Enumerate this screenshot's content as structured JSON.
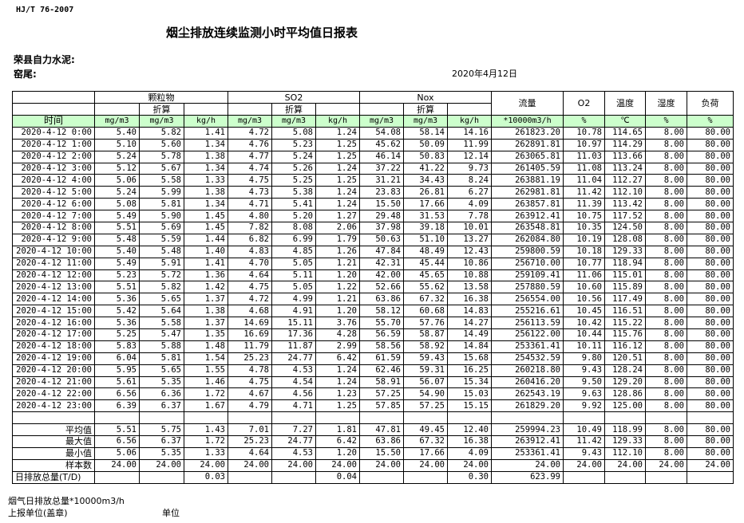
{
  "standard": "HJ/T  76-2007",
  "title": "烟尘排放连续监测小时平均值日报表",
  "company": "荣县自力水泥:",
  "kiln": "窑尾:",
  "date": "2020年4月12日",
  "header": {
    "particulate": "颗粒物",
    "so2": "SO2",
    "nox": "Nox",
    "converted": "折算",
    "flow": "流量",
    "o2": "O2",
    "temperature": "温度",
    "humidity": "湿度",
    "load": "负荷",
    "time": "时间",
    "units": [
      "mg/m3",
      "mg/m3",
      "kg/h",
      "mg/m3",
      "mg/m3",
      "kg/h",
      "mg/m3",
      "mg/m3",
      "kg/h",
      "*10000m3/h",
      "%",
      "℃",
      "%",
      "%"
    ]
  },
  "rows": [
    [
      "2020-4-12 0:00",
      "5.40",
      "5.82",
      "1.41",
      "4.72",
      "5.08",
      "1.24",
      "54.08",
      "58.14",
      "14.16",
      "261823.20",
      "10.78",
      "114.65",
      "8.00",
      "80.00"
    ],
    [
      "2020-4-12 1:00",
      "5.10",
      "5.60",
      "1.34",
      "4.76",
      "5.23",
      "1.25",
      "45.62",
      "50.09",
      "11.99",
      "262891.81",
      "10.97",
      "114.29",
      "8.00",
      "80.00"
    ],
    [
      "2020-4-12 2:00",
      "5.24",
      "5.78",
      "1.38",
      "4.77",
      "5.24",
      "1.25",
      "46.14",
      "50.83",
      "12.14",
      "263065.81",
      "11.03",
      "113.66",
      "8.00",
      "80.00"
    ],
    [
      "2020-4-12 3:00",
      "5.12",
      "5.67",
      "1.34",
      "4.74",
      "5.26",
      "1.24",
      "37.22",
      "41.22",
      "9.73",
      "261405.59",
      "11.08",
      "113.24",
      "8.00",
      "80.00"
    ],
    [
      "2020-4-12 4:00",
      "5.06",
      "5.58",
      "1.33",
      "4.75",
      "5.25",
      "1.25",
      "31.21",
      "34.43",
      "8.24",
      "263881.19",
      "11.04",
      "112.27",
      "8.00",
      "80.00"
    ],
    [
      "2020-4-12 5:00",
      "5.24",
      "5.99",
      "1.38",
      "4.73",
      "5.38",
      "1.24",
      "23.83",
      "26.81",
      "6.27",
      "262981.81",
      "11.42",
      "112.10",
      "8.00",
      "80.00"
    ],
    [
      "2020-4-12 6:00",
      "5.08",
      "5.81",
      "1.34",
      "4.71",
      "5.41",
      "1.24",
      "15.50",
      "17.66",
      "4.09",
      "263857.81",
      "11.39",
      "113.42",
      "8.00",
      "80.00"
    ],
    [
      "2020-4-12 7:00",
      "5.49",
      "5.90",
      "1.45",
      "4.80",
      "5.20",
      "1.27",
      "29.48",
      "31.53",
      "7.78",
      "263912.41",
      "10.75",
      "117.52",
      "8.00",
      "80.00"
    ],
    [
      "2020-4-12 8:00",
      "5.51",
      "5.69",
      "1.45",
      "7.82",
      "8.08",
      "2.06",
      "37.98",
      "39.18",
      "10.01",
      "263548.81",
      "10.35",
      "124.50",
      "8.00",
      "80.00"
    ],
    [
      "2020-4-12 9:00",
      "5.48",
      "5.59",
      "1.44",
      "6.82",
      "6.99",
      "1.79",
      "50.63",
      "51.10",
      "13.27",
      "262084.80",
      "10.19",
      "128.08",
      "8.00",
      "80.00"
    ],
    [
      "2020-4-12 10:00",
      "5.40",
      "5.48",
      "1.40",
      "4.83",
      "4.85",
      "1.26",
      "47.84",
      "48.49",
      "12.43",
      "259800.59",
      "10.18",
      "129.33",
      "8.00",
      "80.00"
    ],
    [
      "2020-4-12 11:00",
      "5.49",
      "5.91",
      "1.41",
      "4.70",
      "5.05",
      "1.21",
      "42.31",
      "45.44",
      "10.86",
      "256710.00",
      "10.77",
      "118.94",
      "8.00",
      "80.00"
    ],
    [
      "2020-4-12 12:00",
      "5.23",
      "5.72",
      "1.36",
      "4.64",
      "5.11",
      "1.20",
      "42.00",
      "45.65",
      "10.88",
      "259109.41",
      "11.06",
      "115.01",
      "8.00",
      "80.00"
    ],
    [
      "2020-4-12 13:00",
      "5.51",
      "5.82",
      "1.42",
      "4.75",
      "5.05",
      "1.22",
      "52.66",
      "55.62",
      "13.58",
      "257880.59",
      "10.60",
      "115.89",
      "8.00",
      "80.00"
    ],
    [
      "2020-4-12 14:00",
      "5.36",
      "5.65",
      "1.37",
      "4.72",
      "4.99",
      "1.21",
      "63.86",
      "67.32",
      "16.38",
      "256554.00",
      "10.56",
      "117.49",
      "8.00",
      "80.00"
    ],
    [
      "2020-4-12 15:00",
      "5.42",
      "5.64",
      "1.38",
      "4.68",
      "4.91",
      "1.20",
      "58.12",
      "60.68",
      "14.83",
      "255216.61",
      "10.45",
      "116.51",
      "8.00",
      "80.00"
    ],
    [
      "2020-4-12 16:00",
      "5.36",
      "5.58",
      "1.37",
      "14.69",
      "15.11",
      "3.76",
      "55.70",
      "57.76",
      "14.27",
      "256113.59",
      "10.42",
      "115.22",
      "8.00",
      "80.00"
    ],
    [
      "2020-4-12 17:00",
      "5.25",
      "5.47",
      "1.35",
      "16.69",
      "17.36",
      "4.28",
      "56.59",
      "58.87",
      "14.49",
      "256122.00",
      "10.44",
      "115.76",
      "8.00",
      "80.00"
    ],
    [
      "2020-4-12 18:00",
      "5.83",
      "5.88",
      "1.48",
      "11.79",
      "11.87",
      "2.99",
      "58.56",
      "58.92",
      "14.84",
      "253361.41",
      "10.11",
      "116.12",
      "8.00",
      "80.00"
    ],
    [
      "2020-4-12 19:00",
      "6.04",
      "5.81",
      "1.54",
      "25.23",
      "24.77",
      "6.42",
      "61.59",
      "59.43",
      "15.68",
      "254532.59",
      "9.80",
      "120.51",
      "8.00",
      "80.00"
    ],
    [
      "2020-4-12 20:00",
      "5.95",
      "5.65",
      "1.55",
      "4.78",
      "4.53",
      "1.24",
      "62.46",
      "59.31",
      "16.25",
      "260218.80",
      "9.43",
      "128.24",
      "8.00",
      "80.00"
    ],
    [
      "2020-4-12 21:00",
      "5.61",
      "5.35",
      "1.46",
      "4.75",
      "4.54",
      "1.24",
      "58.91",
      "56.07",
      "15.34",
      "260416.20",
      "9.50",
      "129.20",
      "8.00",
      "80.00"
    ],
    [
      "2020-4-12 22:00",
      "6.56",
      "6.36",
      "1.72",
      "4.67",
      "4.56",
      "1.23",
      "57.25",
      "54.90",
      "15.03",
      "262543.19",
      "9.63",
      "128.86",
      "8.00",
      "80.00"
    ],
    [
      "2020-4-12 23:00",
      "6.39",
      "6.37",
      "1.67",
      "4.79",
      "4.71",
      "1.25",
      "57.85",
      "57.25",
      "15.15",
      "261829.20",
      "9.92",
      "125.00",
      "8.00",
      "80.00"
    ]
  ],
  "stats": [
    [
      "平均值",
      "5.51",
      "5.75",
      "1.43",
      "7.01",
      "7.27",
      "1.81",
      "47.81",
      "49.45",
      "12.40",
      "259994.23",
      "10.49",
      "118.99",
      "8.00",
      "80.00"
    ],
    [
      "最大值",
      "6.56",
      "6.37",
      "1.72",
      "25.23",
      "24.77",
      "6.42",
      "63.86",
      "67.32",
      "16.38",
      "263912.41",
      "11.42",
      "129.33",
      "8.00",
      "80.00"
    ],
    [
      "最小值",
      "5.06",
      "5.35",
      "1.33",
      "4.64",
      "4.53",
      "1.20",
      "15.50",
      "17.66",
      "4.09",
      "253361.41",
      "9.43",
      "112.10",
      "8.00",
      "80.00"
    ],
    [
      "样本数",
      "24.00",
      "24.00",
      "24.00",
      "24.00",
      "24.00",
      "24.00",
      "24.00",
      "24.00",
      "24.00",
      "24.00",
      "24.00",
      "24.00",
      "24.00",
      "24.00"
    ]
  ],
  "daily_total": [
    "日排放总量(T/D)",
    "",
    "",
    "0.03",
    "",
    "",
    "0.04",
    "",
    "",
    "0.30",
    "623.99",
    "",
    "",
    "",
    ""
  ],
  "footer": {
    "flue_gas_total": "烟气日排放总量*10000m3/h",
    "reporting_unit": "上报单位(盖章)",
    "unit": "单位"
  }
}
